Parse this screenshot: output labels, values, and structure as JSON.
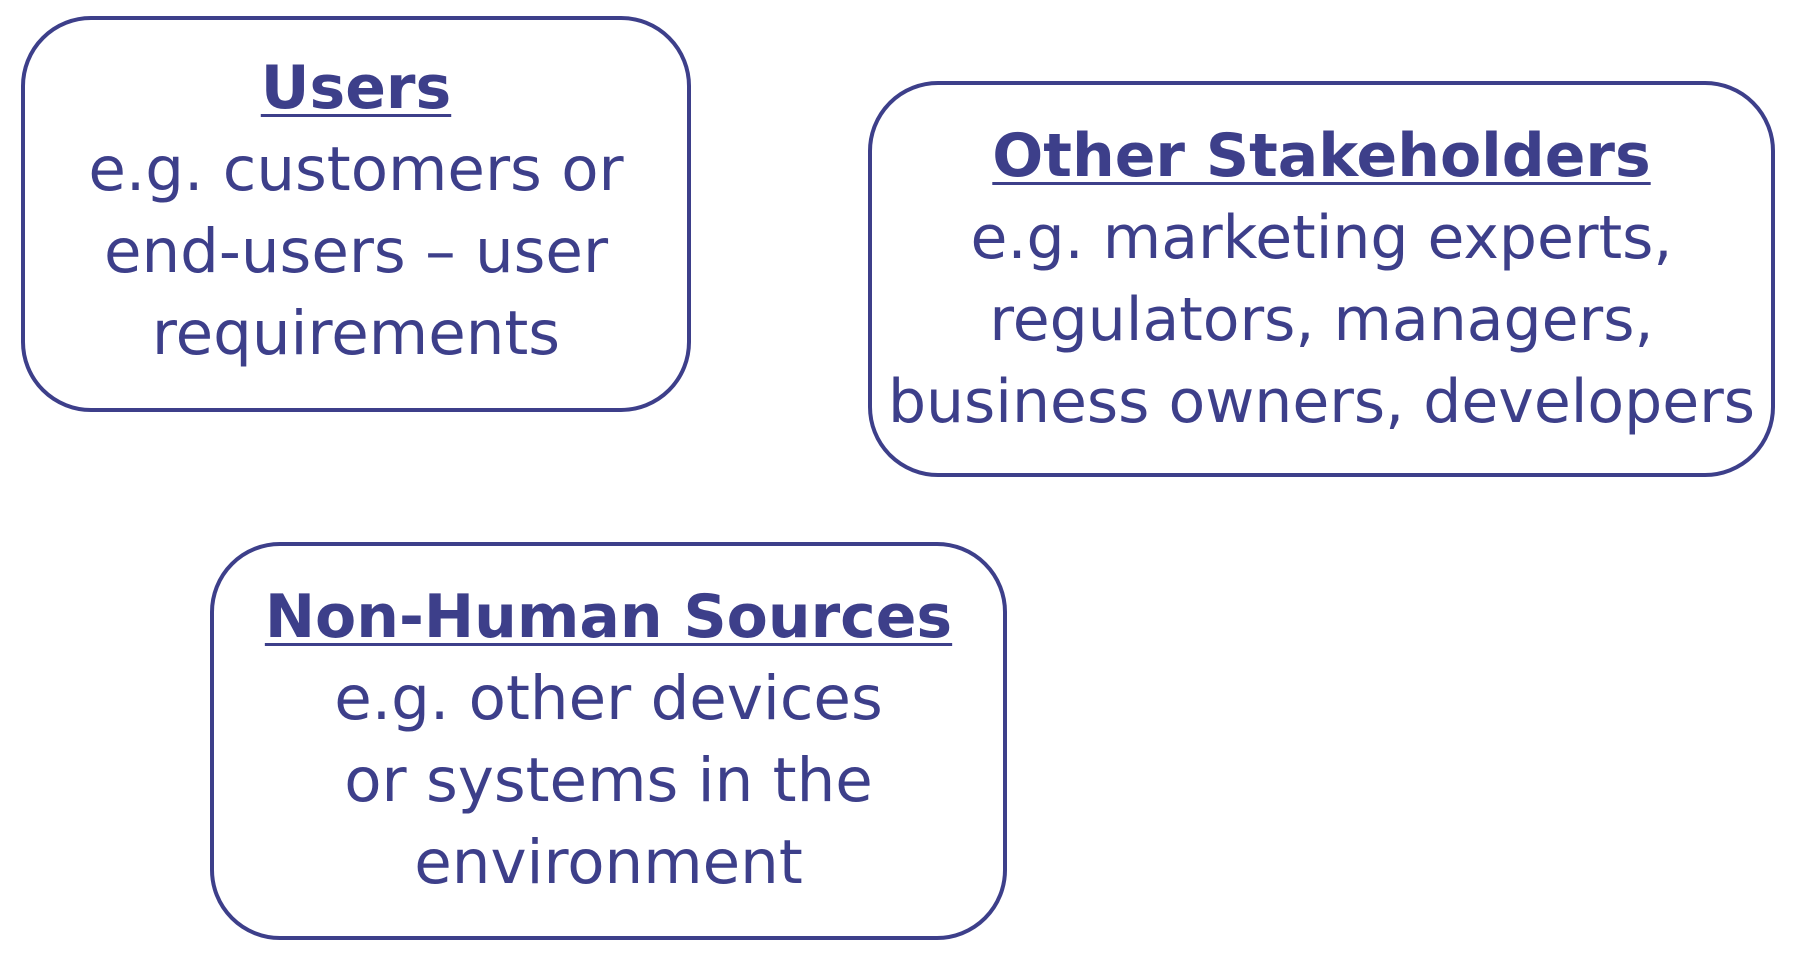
{
  "accent_color": "#3d3f8a",
  "boxes": {
    "users": {
      "title": "Users",
      "lines": [
        "e.g. customers or",
        "end-users – user",
        "requirements"
      ]
    },
    "stakeholders": {
      "title": "Other Stakeholders",
      "lines": [
        "e.g. marketing experts,",
        "regulators, managers,",
        "business owners, developers"
      ]
    },
    "nonhuman": {
      "title": "Non-Human Sources",
      "lines": [
        "e.g. other devices",
        "or systems in the",
        "environment"
      ]
    }
  }
}
